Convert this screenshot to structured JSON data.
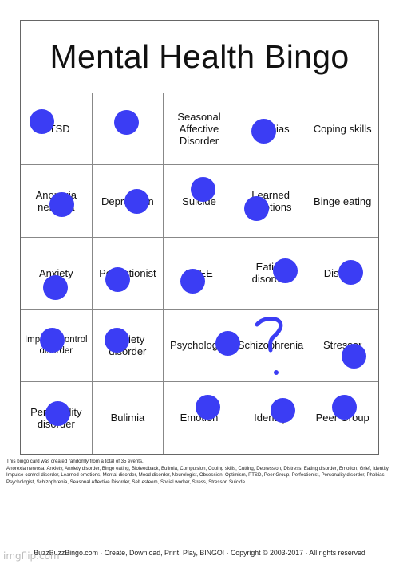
{
  "title": "Mental Health Bingo",
  "cells": [
    "PTSD",
    "",
    "Seasonal Affective Disorder",
    "Phobias",
    "Coping skills",
    "Anorexia nervosa",
    "Depression",
    "Suicide",
    "Learned emotions",
    "Binge eating",
    "Anxiety",
    "Perfectionist",
    "FREE",
    "Eating disorder",
    "Distress",
    "Impulse-control disorder",
    "Anxiety disorder",
    "Psychologist",
    "Schizophrenia",
    "Stressor",
    "Personality disorder",
    "Bulimia",
    "Emotion",
    "Identity",
    "Peer Group"
  ],
  "info": {
    "line1": "This bingo card was created randomly from a total of 35 events.",
    "events": "Anorexia nervosa, Anxiety, Anxiety disorder, Binge eating, Biofeedback, Bulimia, Compulsion, Coping skills, Cutting, Depression, Distress, Eating disorder, Emotion, Grief, Identity, Impulse-control disorder, Learned emotions, Mental disorder, Mood disorder, Neurologist, Obsession, Optimism, PTSD, Peer Group, Perfectionist, Personality disorder, Phobias, Psychologist, Schizophrenia, Seasonal Affective Disorder, Self esteem, Social worker, Stress, Stressor, Suicide."
  },
  "footer": "BuzzBuzzBingo.com · Create, Download, Print, Play, BINGO! · Copyright © 2003-2017 · All rights reserved",
  "watermark": "imgflip.com",
  "marker_color": "#3b3df4"
}
